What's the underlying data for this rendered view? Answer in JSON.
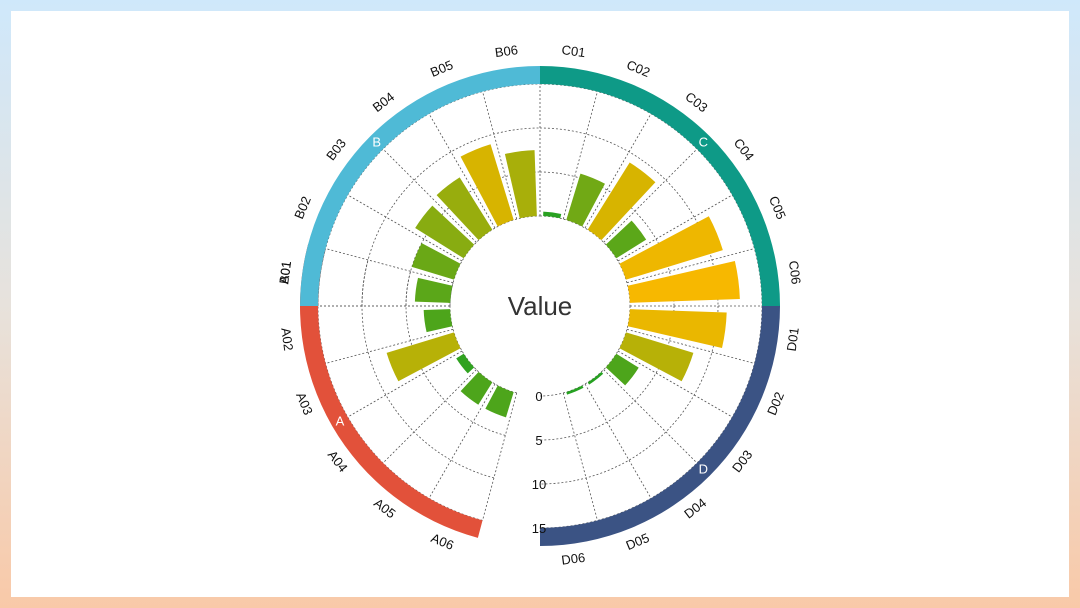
{
  "chart_data": {
    "type": "radial-bar",
    "title": "Value",
    "scale_labels": [
      "0",
      "5",
      "10",
      "15"
    ],
    "ylim": [
      0,
      15
    ],
    "groups": [
      {
        "name": "A",
        "color": "#e2513a",
        "categories": [
          "A01",
          "A02",
          "A03",
          "A04",
          "A05",
          "A06"
        ],
        "values": [
          0.2,
          3.0,
          8.0,
          1.0,
          3.0,
          3.0
        ],
        "value_order": "reverse-angle"
      },
      {
        "name": "B",
        "color": "#4fbad6",
        "categories": [
          "B01",
          "B02",
          "B03",
          "B04",
          "B05",
          "B06"
        ],
        "values": [
          4.0,
          5.0,
          6.5,
          7.0,
          9.0,
          7.5
        ]
      },
      {
        "name": "C",
        "color": "#0e9a87",
        "categories": [
          "C01",
          "C02",
          "C03",
          "C04",
          "C05",
          "C06"
        ],
        "values": [
          0.5,
          5.5,
          9.0,
          4.0,
          11.5,
          12.5
        ]
      },
      {
        "name": "D",
        "color": "#3b5384",
        "categories": [
          "D01",
          "D02",
          "D03",
          "D04",
          "D05",
          "D06"
        ],
        "values": [
          11.0,
          8.0,
          3.0,
          0.3,
          0.3,
          0
        ]
      }
    ]
  }
}
